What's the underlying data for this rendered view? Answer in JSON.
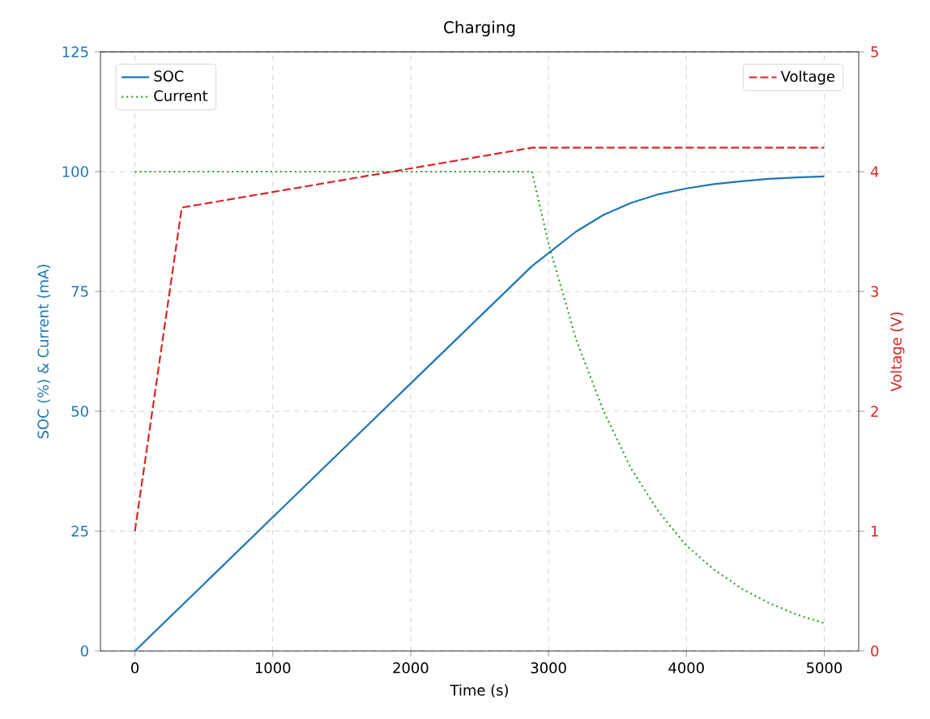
{
  "chart_data": {
    "type": "line",
    "title": "Charging",
    "xlabel": "Time (s)",
    "ylabel": "SOC (%) & Current (mA)",
    "y2label": "Voltage (V)",
    "xlim": [
      -250,
      5250
    ],
    "xticks": [
      0,
      1000,
      2000,
      3000,
      4000,
      5000
    ],
    "ylim": [
      0,
      125
    ],
    "yticks": [
      0,
      25,
      50,
      75,
      100,
      125
    ],
    "y2lim": [
      0,
      5
    ],
    "y2ticks": [
      0,
      1,
      2,
      3,
      4,
      5
    ],
    "grid": true,
    "legend": "top left",
    "series": [
      {
        "name": "SOC",
        "color": "#1f77b4",
        "line_style": "solid",
        "x": [
          0,
          1000,
          2000,
          2880,
          3000,
          3200,
          3400,
          3600,
          3800,
          4000,
          4200,
          4400,
          4600,
          4800,
          5000
        ],
        "values": [
          0,
          27.9,
          55.8,
          80.3,
          83,
          87.5,
          91,
          93.5,
          95.3,
          96.5,
          97.4,
          98,
          98.5,
          98.8,
          99
        ]
      },
      {
        "name": "Current",
        "color": "#2ca02c",
        "line_style": "dotted",
        "x": [
          0,
          2880,
          3000,
          3200,
          3400,
          3600,
          3800,
          4000,
          4200,
          4400,
          4600,
          4800,
          5000
        ],
        "values": [
          100,
          100,
          85,
          65,
          50,
          38,
          29,
          22,
          17,
          13,
          10,
          7.6,
          5.8
        ]
      },
      {
        "name": "Voltage",
        "color": "#d62728",
        "line_style": "dashed",
        "axis": "y2",
        "x": [
          0,
          340,
          2880,
          5000
        ],
        "values": [
          1,
          3.7,
          4.2,
          4.2
        ]
      }
    ]
  }
}
